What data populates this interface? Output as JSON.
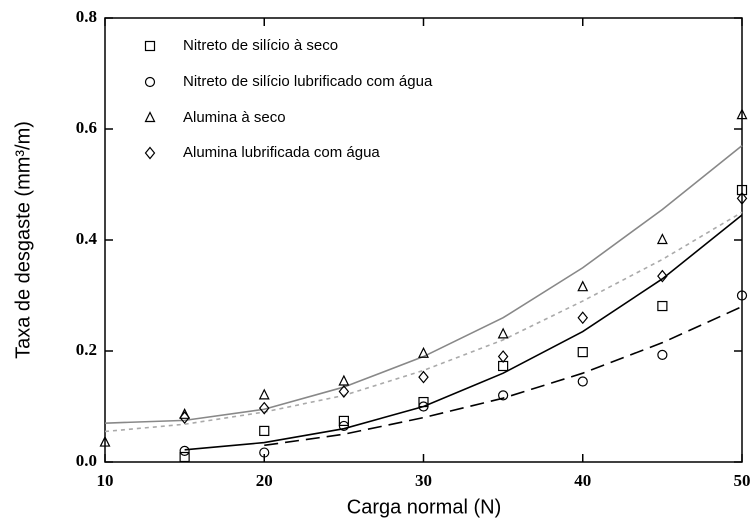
{
  "chart_data": {
    "type": "scatter",
    "xlabel": "Carga normal (N)",
    "ylabel": "Taxa de desgaste (mm³/m)",
    "xlim": [
      10,
      50
    ],
    "xticks": [
      10,
      20,
      30,
      40,
      50
    ],
    "ylim": [
      0,
      0.8
    ],
    "yticks": [
      {
        "value": 0,
        "label": "0.0"
      },
      0.2,
      0.4,
      0.6,
      0.8
    ],
    "legend": "upper left",
    "series": [
      {
        "name": "Nitreto de silício à seco",
        "color": "#000000",
        "marker": "square",
        "x": [
          15,
          20,
          25,
          30,
          35,
          40,
          45,
          50
        ],
        "values": [
          0.009,
          0.056,
          0.074,
          0.108,
          0.173,
          0.198,
          0.281,
          0.49
        ],
        "fit": {
          "x": [
            15,
            20,
            25,
            30,
            35,
            40,
            45,
            50
          ],
          "values": [
            0.022,
            0.035,
            0.06,
            0.1,
            0.16,
            0.235,
            0.33,
            0.445
          ],
          "color": "#000000",
          "style": "solid"
        }
      },
      {
        "name": "Nitreto de silício lubrificado com água",
        "color": "#000000",
        "marker": "circle",
        "x": [
          15,
          20,
          25,
          30,
          35,
          40,
          45,
          50
        ],
        "values": [
          0.02,
          0.017,
          0.065,
          0.1,
          0.12,
          0.145,
          0.193,
          0.3
        ],
        "fit": {
          "x": [
            20,
            25,
            30,
            35,
            40,
            45,
            50
          ],
          "values": [
            0.03,
            0.05,
            0.08,
            0.115,
            0.16,
            0.215,
            0.28
          ],
          "color": "#000000",
          "style": "dashed"
        }
      },
      {
        "name": "Alumina à seco",
        "color": "#000000",
        "marker": "triangle",
        "x": [
          10,
          15,
          20,
          25,
          30,
          35,
          40,
          45,
          50
        ],
        "values": [
          0.035,
          0.085,
          0.12,
          0.145,
          0.195,
          0.23,
          0.315,
          0.4,
          0.625
        ],
        "fit": {
          "x": [
            10,
            15,
            20,
            25,
            30,
            35,
            40,
            45,
            50
          ],
          "values": [
            0.07,
            0.075,
            0.095,
            0.135,
            0.19,
            0.26,
            0.35,
            0.455,
            0.57
          ],
          "color": "#888888",
          "style": "solid"
        }
      },
      {
        "name": "Alumina lubrificada com água",
        "color": "#000000",
        "marker": "diamond",
        "x": [
          15,
          20,
          25,
          30,
          35,
          40,
          45,
          50
        ],
        "values": [
          0.08,
          0.097,
          0.127,
          0.153,
          0.19,
          0.26,
          0.335,
          0.475
        ],
        "fit": {
          "x": [
            10,
            15,
            20,
            25,
            30,
            35,
            40,
            45,
            50
          ],
          "values": [
            0.055,
            0.068,
            0.09,
            0.12,
            0.165,
            0.22,
            0.29,
            0.365,
            0.45
          ],
          "color": "#aaaaaa",
          "style": "dotted"
        }
      }
    ]
  }
}
